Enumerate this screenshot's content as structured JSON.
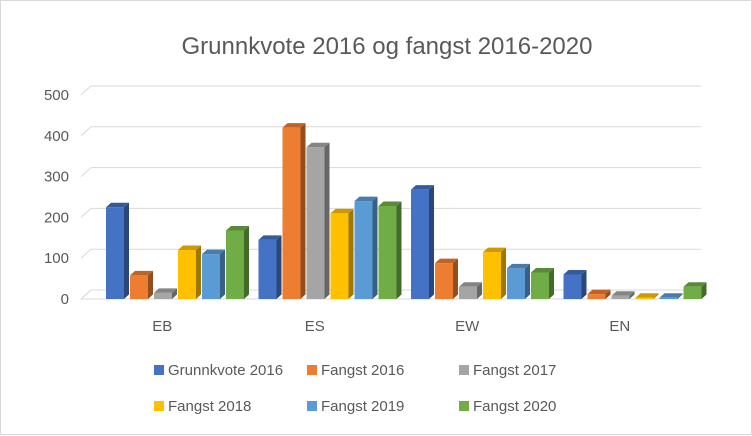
{
  "chart_data": {
    "type": "bar",
    "style": "3d-clustered-column",
    "title": "Grunnkvote 2016 og fangst 2016-2020",
    "xlabel": "",
    "ylabel": "",
    "categories": [
      "EB",
      "ES",
      "EW",
      "EN"
    ],
    "ylim": [
      0,
      500
    ],
    "yticks": [
      "0",
      "100",
      "200",
      "300",
      "400",
      "500"
    ],
    "grid": true,
    "legend_position": "bottom",
    "series": [
      {
        "name": "Grunnkvote 2016",
        "color": "#4472c4",
        "values": [
          225,
          145,
          268,
          60
        ]
      },
      {
        "name": "Fangst 2016",
        "color": "#ed7d31",
        "values": [
          58,
          420,
          88,
          12
        ]
      },
      {
        "name": "Fangst 2017",
        "color": "#a5a5a5",
        "values": [
          15,
          372,
          30,
          8
        ]
      },
      {
        "name": "Fangst 2018",
        "color": "#ffc000",
        "values": [
          120,
          210,
          115,
          3
        ]
      },
      {
        "name": "Fangst 2019",
        "color": "#5b9bd5",
        "values": [
          110,
          240,
          75,
          3
        ]
      },
      {
        "name": "Fangst 2020",
        "color": "#70ad47",
        "values": [
          168,
          228,
          65,
          30
        ]
      }
    ]
  }
}
